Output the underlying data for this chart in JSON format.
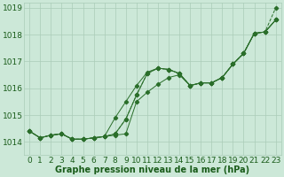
{
  "title": "Graphe pression niveau de la mer (hPa)",
  "bg_color": "#cce8d8",
  "grid_color": "#aaccb8",
  "line_color": "#2a6e2a",
  "marker_color": "#2a6e2a",
  "tick_color": "#1a5c1a",
  "hours": [
    0,
    1,
    2,
    3,
    4,
    5,
    6,
    7,
    8,
    9,
    10,
    11,
    12,
    13,
    14,
    15,
    16,
    17,
    18,
    19,
    20,
    21,
    22,
    23
  ],
  "series1": [
    1014.4,
    1014.15,
    1014.25,
    1014.3,
    1014.1,
    1014.1,
    1014.15,
    1014.2,
    1014.25,
    1014.3,
    1015.5,
    1015.85,
    1016.15,
    1016.4,
    1016.5,
    1016.1,
    1016.2,
    1016.2,
    1016.4,
    1016.9,
    1017.3,
    1018.05,
    1018.1,
    1018.55
  ],
  "series2": [
    1014.4,
    1014.15,
    1014.25,
    1014.3,
    1014.1,
    1014.1,
    1014.15,
    1014.2,
    1014.3,
    1014.85,
    1015.75,
    1016.55,
    1016.75,
    1016.7,
    1016.55,
    1016.1,
    1016.2,
    1016.2,
    1016.4,
    1016.9,
    1017.3,
    1018.05,
    1018.1,
    1018.55
  ],
  "series3": [
    1014.4,
    1014.15,
    1014.25,
    1014.3,
    1014.1,
    1014.1,
    1014.15,
    1014.2,
    1014.9,
    1015.5,
    1016.1,
    1016.6,
    1016.75,
    1016.7,
    1016.55,
    1016.1,
    1016.2,
    1016.2,
    1016.4,
    1016.9,
    1017.3,
    1018.05,
    1018.1,
    1018.55
  ],
  "series4": [
    1014.4,
    1014.15,
    1014.25,
    1014.3,
    1014.1,
    1014.1,
    1014.15,
    1014.2,
    1014.3,
    1014.85,
    1015.75,
    1016.55,
    1016.75,
    1016.7,
    1016.55,
    1016.1,
    1016.2,
    1016.2,
    1016.4,
    1016.9,
    1017.3,
    1018.05,
    1018.1,
    1019.0
  ],
  "ylim_min": 1013.5,
  "ylim_max": 1019.2,
  "yticks": [
    1014,
    1015,
    1016,
    1017,
    1018,
    1019
  ],
  "fontsize_title": 7,
  "fontsize_tick": 6.5
}
